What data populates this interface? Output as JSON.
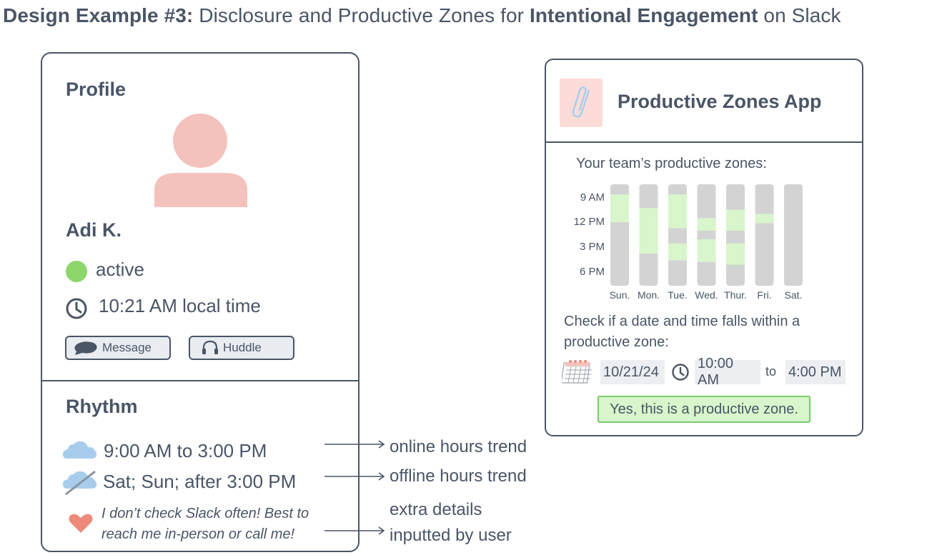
{
  "title": {
    "prefix_bold": "Design Example #3:",
    "middle": "Disclosure and Productive Zones for",
    "highlight_bold": "Intentional Engagement",
    "suffix": "on Slack"
  },
  "profile": {
    "heading": "Profile",
    "name": "Adi K.",
    "status": "active",
    "local_time": "10:21 AM local time",
    "message_label": "Message",
    "huddle_label": "Huddle"
  },
  "rhythm": {
    "heading": "Rhythm",
    "online_hours": "9:00 AM to 3:00 PM",
    "offline_hours": "Sat; Sun; after 3:00 PM",
    "note_line1": "I don’t check Slack often! Best to",
    "note_line2": "reach me in-person or call me!"
  },
  "annotations": {
    "online": "online hours trend",
    "offline": "offline hours trend",
    "extra_line1": "extra details",
    "extra_line2": "inputted by user"
  },
  "app": {
    "title": "Productive Zones App",
    "team_label": "Your team’s productive zones:",
    "check_line1": "Check if a date and time falls within a",
    "check_line2": "productive zone:",
    "date_value": "10/21/24",
    "start_time": "10:00 AM",
    "to_label": "to",
    "end_time": "4:00 PM",
    "result": "Yes, this is a productive zone."
  },
  "colors": {
    "text": "#4a5566",
    "avatar": "#f4c2bc",
    "active_dot": "#8cd66c",
    "cloud": "#a8cdec",
    "heart": "#ee8a7a",
    "bar_bg": "#d3d3d3",
    "zone": "#d8f5cc"
  },
  "chart_data": {
    "type": "bar",
    "y_ticks": [
      "9 AM",
      "12 PM",
      "3 PM",
      "6 PM"
    ],
    "y_range_hours": [
      8,
      20
    ],
    "categories": [
      "Sun.",
      "Mon.",
      "Tue.",
      "Wed.",
      "Thur.",
      "Fri.",
      "Sat."
    ],
    "zones": [
      [
        [
          9.2,
          12.5
        ]
      ],
      [
        [
          10.8,
          16.2
        ]
      ],
      [
        [
          9.2,
          13.2
        ],
        [
          15.0,
          17.0
        ]
      ],
      [
        [
          12.0,
          13.5
        ],
        [
          14.5,
          17.2
        ]
      ],
      [
        [
          11.0,
          13.5
        ],
        [
          15.0,
          17.5
        ]
      ],
      [
        [
          11.5,
          12.6
        ]
      ],
      []
    ]
  }
}
